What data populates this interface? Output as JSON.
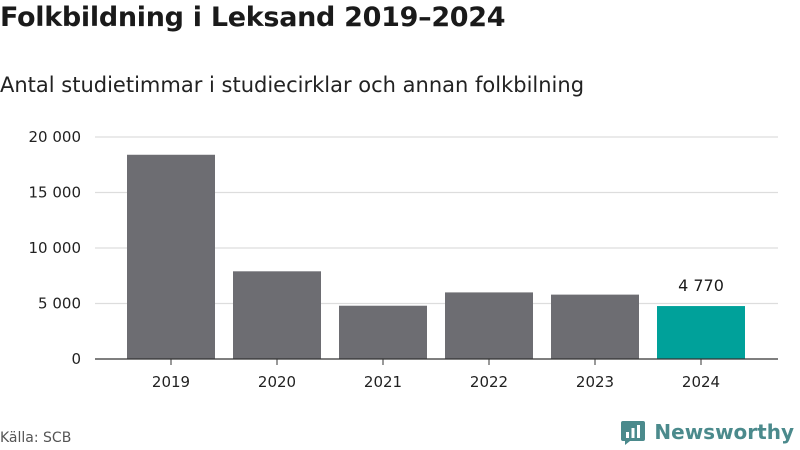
{
  "title": "Folkbildning i Leksand 2019–2024",
  "subtitle": "Antal studietimmar i studiecirklar och annan folkbilning",
  "source": "Källa: SCB",
  "brand": {
    "name": "Newsworthy",
    "icon": "newsworthy-logo-icon",
    "color": "#4b8a8c"
  },
  "colors": {
    "bar": "#6d6d72",
    "highlight": "#00a19a",
    "grid": "#dddddd",
    "axis": "#333333"
  },
  "chart_data": {
    "type": "bar",
    "categories": [
      "2019",
      "2020",
      "2021",
      "2022",
      "2023",
      "2024"
    ],
    "values": [
      18400,
      7900,
      4800,
      6000,
      5800,
      4770
    ],
    "highlight_index": 5,
    "data_labels": [
      {
        "index": 5,
        "text": "4 770"
      }
    ],
    "ylim": [
      0,
      20000
    ],
    "yticks": [
      0,
      5000,
      10000,
      15000,
      20000
    ],
    "ytick_labels": [
      "0",
      "5 000",
      "10 000",
      "15 000",
      "20 000"
    ],
    "xlabel": "",
    "ylabel": "",
    "grid": true,
    "legend": "none"
  }
}
